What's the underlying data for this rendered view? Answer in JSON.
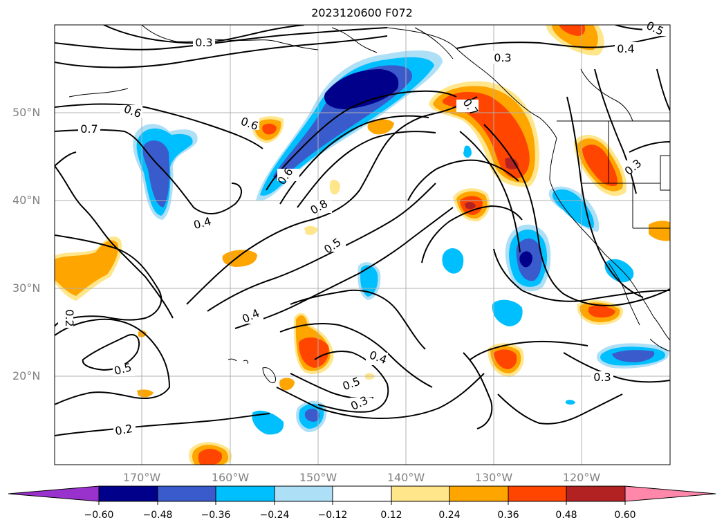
{
  "title": "2023120600 F072",
  "map": {
    "latitude_labels": [
      "50°N",
      "40°N",
      "30°N",
      "20°N"
    ],
    "longitude_labels": [
      "170°W",
      "160°W",
      "150°W",
      "140°W",
      "130°W",
      "120°W"
    ],
    "gridlines": true,
    "contour_color": "#000000",
    "contour_labels": [
      "0.3",
      "0.3",
      "0.4",
      "0.5",
      "0.6",
      "0.7",
      "0.6",
      "0.7",
      "0.6",
      "0.8",
      "0.5",
      "0.4",
      "0.4",
      "0.3",
      "0.4",
      "0.5",
      "0.5",
      "0.3",
      "0.2",
      "0.3",
      "0.2",
      "0.5"
    ]
  },
  "colorbar": {
    "tick_labels": [
      "−0.60",
      "−0.48",
      "−0.36",
      "−0.24",
      "−0.12",
      "0.12",
      "0.24",
      "0.36",
      "0.48",
      "0.60"
    ],
    "colors": [
      "#9932CC",
      "#00008B",
      "#3A5BCC",
      "#00BFFF",
      "#ADDFF7",
      "#FFFFFF",
      "#FFE68A",
      "#FFA500",
      "#FF4500",
      "#B22222",
      "#FF88AA"
    ],
    "extend": "both"
  }
}
